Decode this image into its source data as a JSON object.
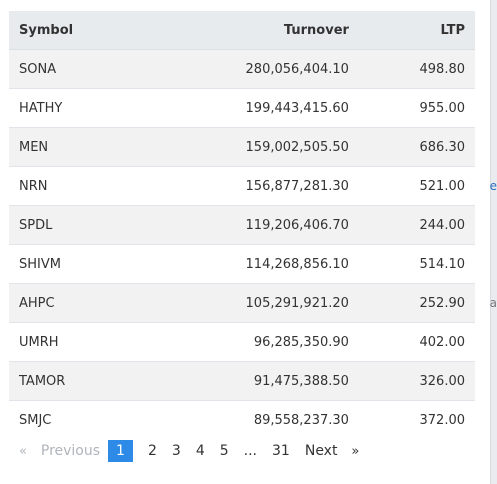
{
  "table": {
    "headers": {
      "symbol": "Symbol",
      "turnover": "Turnover",
      "ltp": "LTP"
    },
    "rows": [
      {
        "symbol": "SONA",
        "turnover": "280,056,404.10",
        "ltp": "498.80"
      },
      {
        "symbol": "HATHY",
        "turnover": "199,443,415.60",
        "ltp": "955.00"
      },
      {
        "symbol": "MEN",
        "turnover": "159,002,505.50",
        "ltp": "686.30"
      },
      {
        "symbol": "NRN",
        "turnover": "156,877,281.30",
        "ltp": "521.00"
      },
      {
        "symbol": "SPDL",
        "turnover": "119,206,406.70",
        "ltp": "244.00"
      },
      {
        "symbol": "SHIVM",
        "turnover": "114,268,856.10",
        "ltp": "514.10"
      },
      {
        "symbol": "AHPC",
        "turnover": "105,291,921.20",
        "ltp": "252.90"
      },
      {
        "symbol": "UMRH",
        "turnover": "96,285,350.90",
        "ltp": "402.00"
      },
      {
        "symbol": "TAMOR",
        "turnover": "91,475,388.50",
        "ltp": "326.00"
      },
      {
        "symbol": "SMJC",
        "turnover": "89,558,237.30",
        "ltp": "372.00"
      }
    ]
  },
  "pagination": {
    "prev_arrow": "«",
    "prev_label": "Previous",
    "pages": [
      "1",
      "2",
      "3",
      "4",
      "5"
    ],
    "active_page": "1",
    "ellipsis": "...",
    "last_page": "31",
    "next_label": "Next",
    "next_arrow": "»"
  },
  "edge_fragments": {
    "top": "e",
    "bottom": "a"
  },
  "colors": {
    "active_page": "#2d8ae6",
    "header_bg": "#e8ebee",
    "stripe_bg": "#f2f2f2",
    "disabled_text": "#b0b5bb"
  }
}
